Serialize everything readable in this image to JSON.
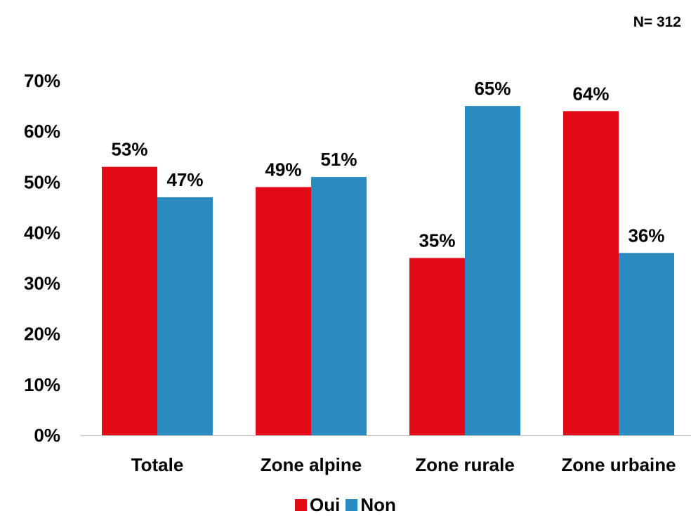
{
  "note": "N= 312",
  "chart_data": {
    "type": "bar",
    "categories": [
      "Totale",
      "Zone alpine",
      "Zone rurale",
      "Zone urbaine"
    ],
    "series": [
      {
        "name": "Oui",
        "values": [
          53,
          49,
          35,
          64
        ],
        "labels": [
          "53%",
          "49%",
          "35%",
          "64%"
        ],
        "color": "#e20a16"
      },
      {
        "name": "Non",
        "values": [
          47,
          51,
          65,
          36
        ],
        "labels": [
          "47%",
          "51%",
          "65%",
          "36%"
        ],
        "color": "#2a8bc0"
      }
    ],
    "ylim": [
      0,
      70
    ],
    "yticks": [
      "0%",
      "10%",
      "20%",
      "30%",
      "40%",
      "50%",
      "60%",
      "70%"
    ],
    "grid": false,
    "legend_position": "bottom"
  }
}
